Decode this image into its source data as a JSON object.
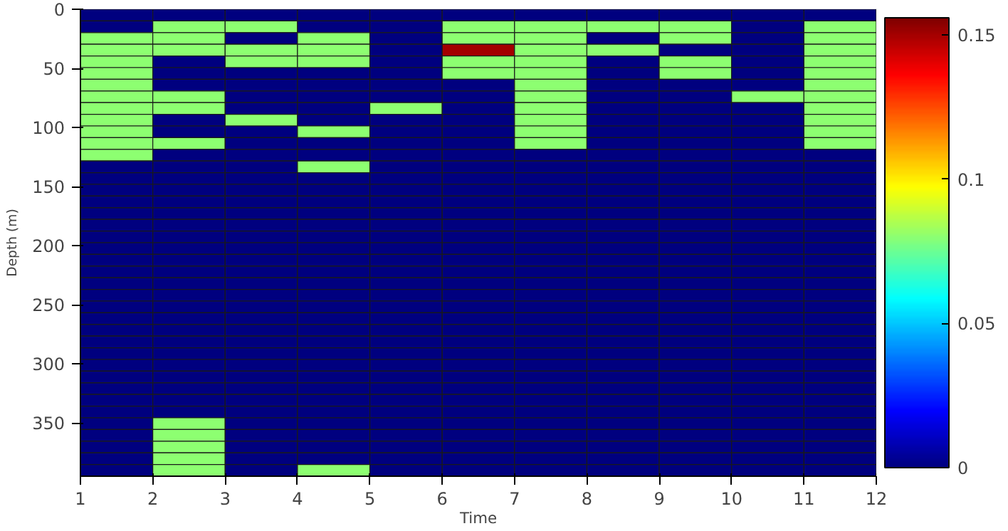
{
  "chart_data": {
    "type": "heatmap",
    "xlabel": "Time",
    "ylabel": "Depth (m)",
    "x": [
      1.5,
      2.5,
      3.5,
      4.5,
      5.5,
      6.5,
      7.5,
      8.5,
      9.5,
      10.5,
      11.5
    ],
    "xlim": [
      1,
      12
    ],
    "xticks": [
      1,
      2,
      3,
      4,
      5,
      6,
      7,
      8,
      9,
      10,
      11,
      12
    ],
    "ylim": [
      395,
      0
    ],
    "yticks": [
      0,
      50,
      100,
      150,
      200,
      250,
      300,
      350
    ],
    "clim": [
      0,
      0.156
    ],
    "cticks": [
      0,
      0.05,
      0.1,
      0.15
    ],
    "cells": [
      [
        0,
        0,
        0,
        0,
        0,
        0,
        0,
        0,
        0,
        0,
        0
      ],
      [
        0,
        0.08,
        0.08,
        0,
        0,
        0.08,
        0.08,
        0.08,
        0.08,
        0,
        0.08
      ],
      [
        0.08,
        0.08,
        0,
        0.08,
        0,
        0.08,
        0.08,
        0,
        0.08,
        0,
        0.08
      ],
      [
        0.08,
        0.08,
        0.08,
        0.08,
        0,
        0.15,
        0.08,
        0.08,
        0,
        0,
        0.08
      ],
      [
        0.08,
        0,
        0.08,
        0.08,
        0,
        0.08,
        0.08,
        0,
        0.08,
        0,
        0.08
      ],
      [
        0.08,
        0,
        0,
        0,
        0,
        0.08,
        0.08,
        0,
        0.08,
        0,
        0.08
      ],
      [
        0.08,
        0,
        0,
        0,
        0,
        0,
        0.08,
        0,
        0,
        0,
        0.08
      ],
      [
        0.08,
        0.08,
        0,
        0,
        0,
        0,
        0.08,
        0,
        0,
        0.08,
        0.08
      ],
      [
        0.08,
        0.08,
        0,
        0,
        0.08,
        0,
        0.08,
        0,
        0,
        0,
        0.08
      ],
      [
        0.08,
        0,
        0.08,
        0,
        0,
        0,
        0.08,
        0,
        0,
        0,
        0.08
      ],
      [
        0.08,
        0,
        0,
        0.08,
        0,
        0,
        0.08,
        0,
        0,
        0,
        0.08
      ],
      [
        0.08,
        0.08,
        0,
        0,
        0,
        0,
        0.08,
        0,
        0,
        0,
        0.08
      ],
      [
        0.08,
        0,
        0,
        0,
        0,
        0,
        0,
        0,
        0,
        0,
        0
      ],
      [
        0,
        0,
        0,
        0.08,
        0,
        0,
        0,
        0,
        0,
        0,
        0
      ],
      [
        0,
        0,
        0,
        0,
        0,
        0,
        0,
        0,
        0,
        0,
        0
      ],
      [
        0,
        0,
        0,
        0,
        0,
        0,
        0,
        0,
        0,
        0,
        0
      ],
      [
        0,
        0,
        0,
        0,
        0,
        0,
        0,
        0,
        0,
        0,
        0
      ],
      [
        0,
        0,
        0,
        0,
        0,
        0,
        0,
        0,
        0,
        0,
        0
      ],
      [
        0,
        0,
        0,
        0,
        0,
        0,
        0,
        0,
        0,
        0,
        0
      ],
      [
        0,
        0,
        0,
        0,
        0,
        0,
        0,
        0,
        0,
        0,
        0
      ],
      [
        0,
        0,
        0,
        0,
        0,
        0,
        0,
        0,
        0,
        0,
        0
      ],
      [
        0,
        0,
        0,
        0,
        0,
        0,
        0,
        0,
        0,
        0,
        0
      ],
      [
        0,
        0,
        0,
        0,
        0,
        0,
        0,
        0,
        0,
        0,
        0
      ],
      [
        0,
        0,
        0,
        0,
        0,
        0,
        0,
        0,
        0,
        0,
        0
      ],
      [
        0,
        0,
        0,
        0,
        0,
        0,
        0,
        0,
        0,
        0,
        0
      ],
      [
        0,
        0,
        0,
        0,
        0,
        0,
        0,
        0,
        0,
        0,
        0
      ],
      [
        0,
        0,
        0,
        0,
        0,
        0,
        0,
        0,
        0,
        0,
        0
      ],
      [
        0,
        0,
        0,
        0,
        0,
        0,
        0,
        0,
        0,
        0,
        0
      ],
      [
        0,
        0,
        0,
        0,
        0,
        0,
        0,
        0,
        0,
        0,
        0
      ],
      [
        0,
        0,
        0,
        0,
        0,
        0,
        0,
        0,
        0,
        0,
        0
      ],
      [
        0,
        0,
        0,
        0,
        0,
        0,
        0,
        0,
        0,
        0,
        0
      ],
      [
        0,
        0,
        0,
        0,
        0,
        0,
        0,
        0,
        0,
        0,
        0
      ],
      [
        0,
        0,
        0,
        0,
        0,
        0,
        0,
        0,
        0,
        0,
        0
      ],
      [
        0,
        0,
        0,
        0,
        0,
        0,
        0,
        0,
        0,
        0,
        0
      ],
      [
        0,
        0,
        0,
        0,
        0,
        0,
        0,
        0,
        0,
        0,
        0
      ],
      [
        0,
        0.08,
        0,
        0,
        0,
        0,
        0,
        0,
        0,
        0,
        0
      ],
      [
        0,
        0.08,
        0,
        0,
        0,
        0,
        0,
        0,
        0,
        0,
        0
      ],
      [
        0,
        0.08,
        0,
        0,
        0,
        0,
        0,
        0,
        0,
        0,
        0
      ],
      [
        0,
        0.08,
        0,
        0,
        0,
        0,
        0,
        0,
        0,
        0,
        0
      ],
      [
        0,
        0.08,
        0,
        0.08,
        0,
        0,
        0,
        0,
        0,
        0,
        0
      ]
    ]
  }
}
